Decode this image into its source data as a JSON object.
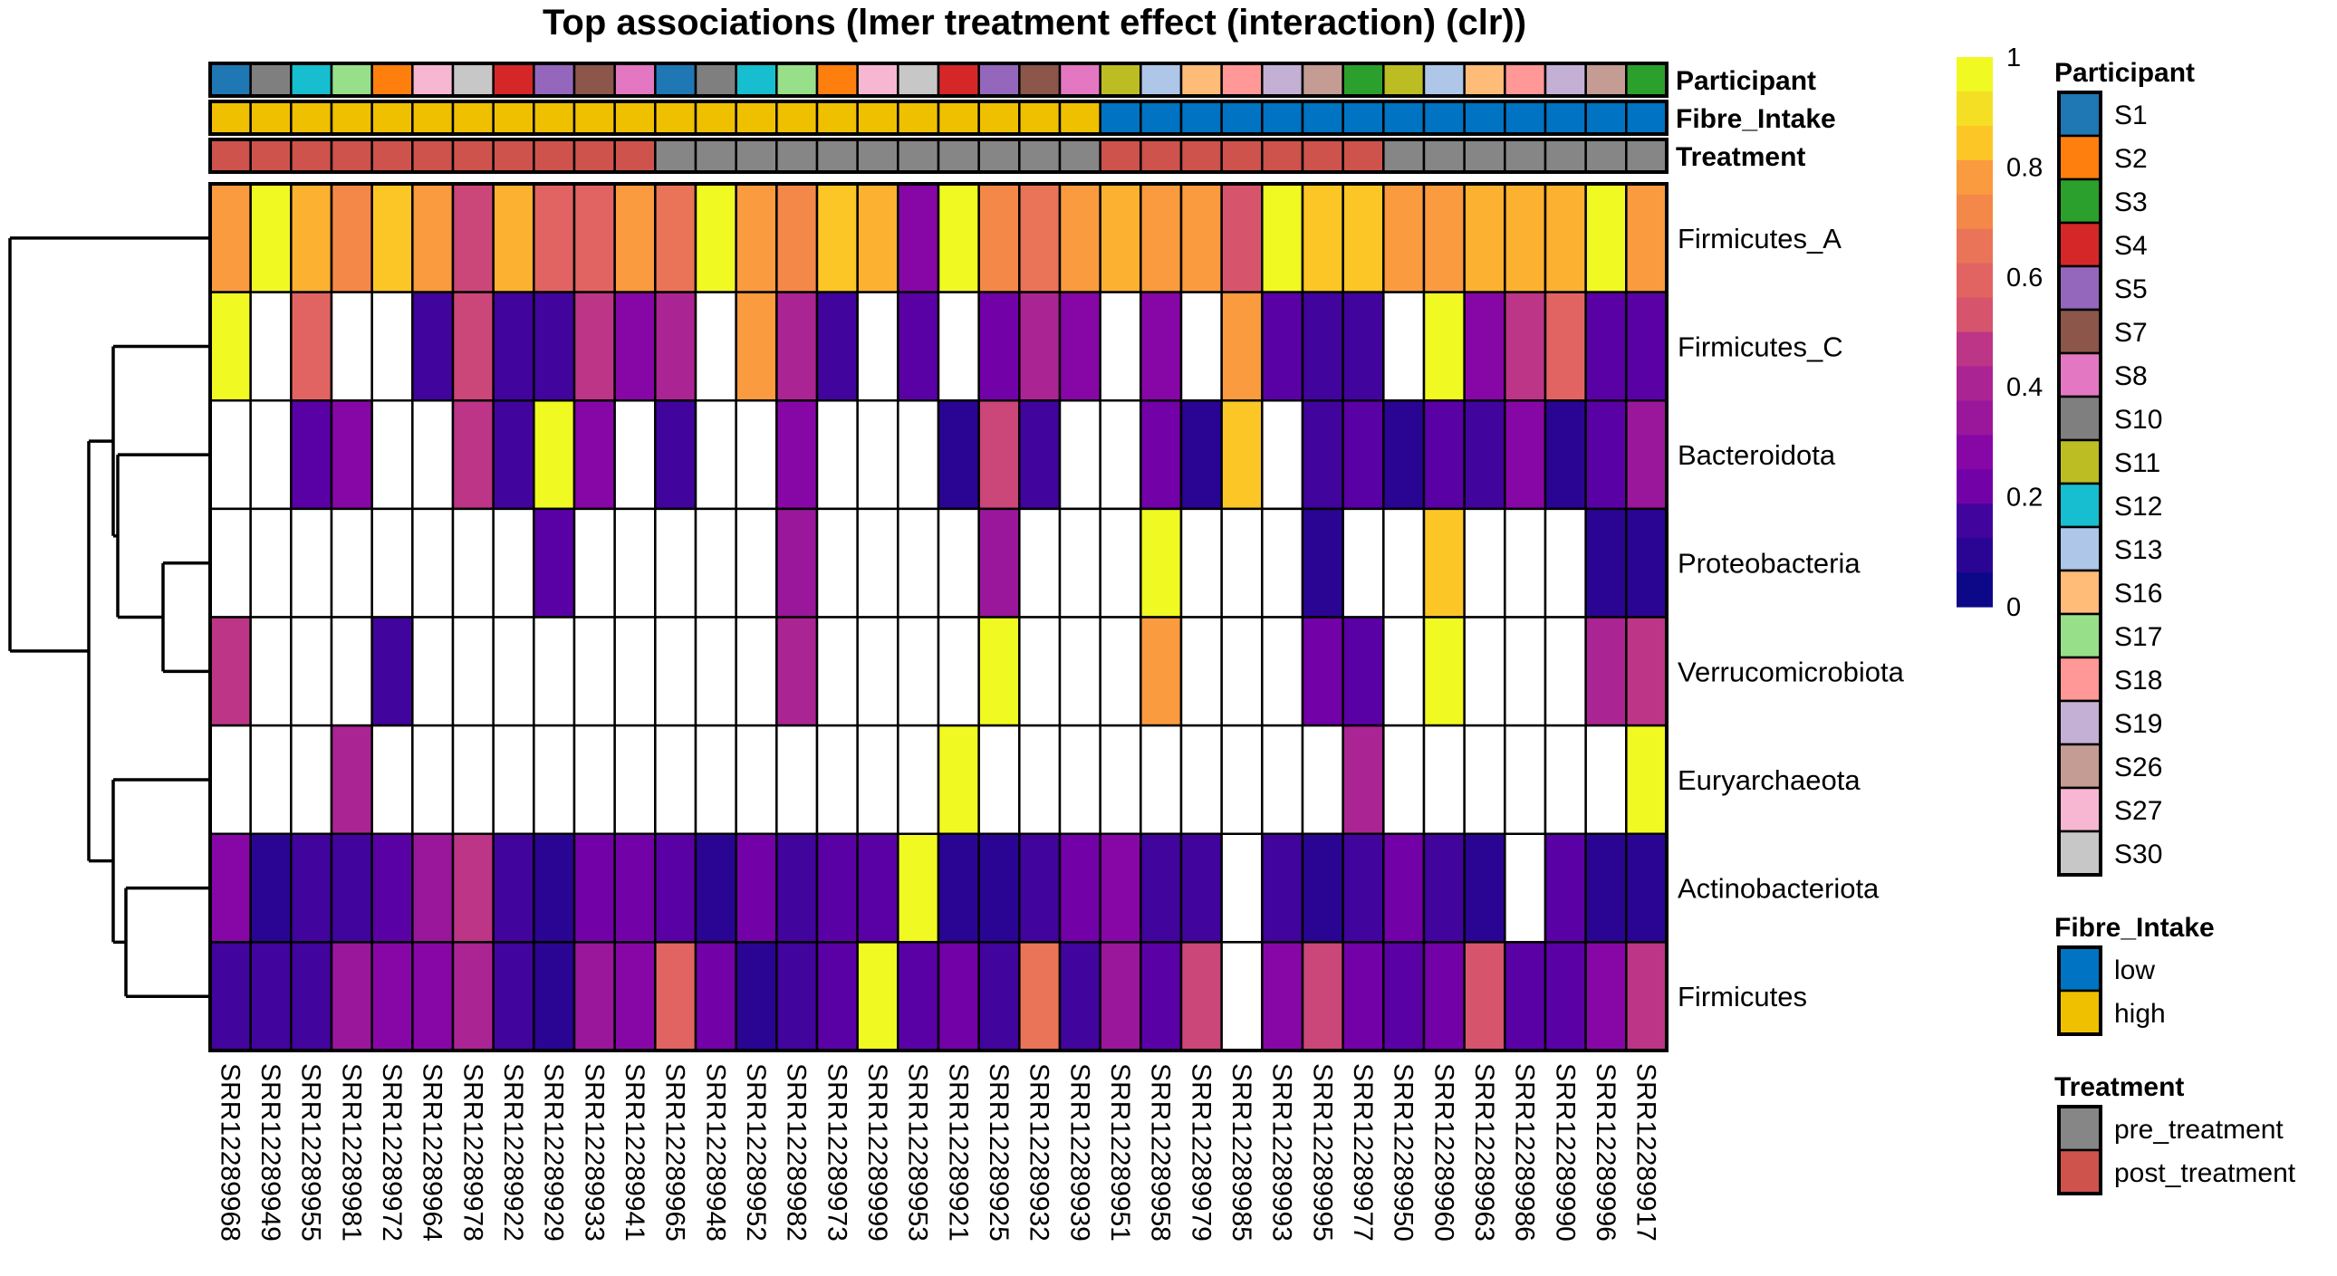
{
  "chart_data": {
    "type": "heatmap",
    "title": "Top associations (lmer treatment effect (interaction) (clr))",
    "xlabel": "",
    "ylabel": "",
    "color_scale": {
      "name": "plasma (stepped)",
      "range": [
        0,
        1
      ],
      "ticks": [
        "0",
        "0.2",
        "0.4",
        "0.6",
        "0.8",
        "1"
      ],
      "tick_values": [
        0,
        0.2,
        0.4,
        0.6,
        0.8,
        1
      ],
      "na_color": "#ffffff"
    },
    "columns": [
      "SRR12289968",
      "SRR12289949",
      "SRR12289955",
      "SRR12289981",
      "SRR12289972",
      "SRR12289964",
      "SRR12289978",
      "SRR12289922",
      "SRR12289929",
      "SRR12289933",
      "SRR12289941",
      "SRR12289965",
      "SRR12289948",
      "SRR12289952",
      "SRR12289982",
      "SRR12289973",
      "SRR12289999",
      "SRR12289953",
      "SRR12289921",
      "SRR12289925",
      "SRR12289932",
      "SRR12289939",
      "SRR12289951",
      "SRR12289958",
      "SRR12289979",
      "SRR12289985",
      "SRR12289993",
      "SRR12289995",
      "SRR12289977",
      "SRR12289950",
      "SRR12289960",
      "SRR12289963",
      "SRR12289986",
      "SRR12289990",
      "SRR12289996",
      "SRR12289917"
    ],
    "rows": [
      "Firmicutes_A",
      "Firmicutes_C",
      "Bacteroidota",
      "Proteobacteria",
      "Verrucomicrobiota",
      "Euryarchaeota",
      "Actinobacteriota",
      "Firmicutes"
    ],
    "values": [
      [
        0.75,
        1,
        0.85,
        0.7,
        0.9,
        0.8,
        0.5,
        0.85,
        0.6,
        0.6,
        0.8,
        0.65,
        1,
        0.75,
        0.7,
        0.9,
        0.85,
        0.3,
        1,
        0.7,
        0.65,
        0.8,
        0.85,
        0.8,
        0.75,
        0.55,
        1,
        0.9,
        0.9,
        0.8,
        0.8,
        0.85,
        0.85,
        0.85,
        1,
        0.75
      ],
      [
        1,
        null,
        0.6,
        null,
        null,
        0.1,
        0.5,
        0.1,
        0.1,
        0.44,
        0.25,
        0.38,
        null,
        0.75,
        0.38,
        0.1,
        null,
        0.15,
        null,
        0.2,
        0.38,
        0.25,
        null,
        0.25,
        null,
        0.75,
        0.15,
        0.1,
        0.1,
        null,
        1,
        0.25,
        0.44,
        0.6,
        0.15,
        0.15
      ],
      [
        null,
        null,
        0.15,
        0.3,
        null,
        null,
        0.44,
        0.1,
        1,
        0.25,
        null,
        0.1,
        null,
        null,
        0.25,
        null,
        null,
        null,
        0.03,
        0.5,
        0.1,
        null,
        null,
        0.2,
        0.03,
        0.9,
        null,
        0.1,
        0.15,
        0.03,
        0.15,
        0.1,
        0.25,
        0.03,
        0.15,
        0.34
      ],
      [
        null,
        null,
        null,
        null,
        null,
        null,
        null,
        null,
        0.15,
        null,
        null,
        null,
        null,
        null,
        0.34,
        null,
        null,
        null,
        null,
        0.34,
        null,
        null,
        null,
        1,
        null,
        null,
        null,
        0.03,
        null,
        null,
        0.9,
        null,
        null,
        null,
        0.03,
        0.03
      ],
      [
        0.44,
        null,
        null,
        null,
        0.1,
        null,
        null,
        null,
        null,
        null,
        null,
        null,
        null,
        null,
        0.38,
        null,
        null,
        null,
        null,
        1,
        null,
        null,
        null,
        0.8,
        null,
        null,
        null,
        0.2,
        0.15,
        null,
        1,
        null,
        null,
        null,
        0.38,
        0.44
      ],
      [
        null,
        null,
        null,
        0.38,
        null,
        null,
        null,
        null,
        null,
        null,
        null,
        null,
        null,
        null,
        null,
        null,
        null,
        null,
        1,
        null,
        null,
        null,
        null,
        null,
        null,
        null,
        null,
        null,
        0.38,
        null,
        null,
        null,
        null,
        null,
        null,
        1
      ],
      [
        0.3,
        0.03,
        0.1,
        0.1,
        0.15,
        0.34,
        0.44,
        0.1,
        0.03,
        0.2,
        0.2,
        0.15,
        0.03,
        0.2,
        0.1,
        0.15,
        0.15,
        1,
        0.03,
        0.03,
        0.1,
        0.2,
        0.25,
        0.1,
        0.1,
        null,
        0.1,
        0.03,
        0.1,
        0.2,
        0.1,
        0.03,
        null,
        0.15,
        0.03,
        0.03
      ],
      [
        0.1,
        0.1,
        0.1,
        0.34,
        0.3,
        0.3,
        0.38,
        0.1,
        0.03,
        0.34,
        0.25,
        0.6,
        0.2,
        0.03,
        0.1,
        0.15,
        1,
        0.15,
        0.2,
        0.1,
        0.65,
        0.1,
        0.34,
        0.15,
        0.5,
        null,
        0.3,
        0.5,
        0.2,
        0.15,
        0.2,
        0.55,
        0.15,
        0.15,
        0.25,
        0.44
      ]
    ],
    "annotations": {
      "labels": [
        "Participant",
        "Fibre_Intake",
        "Treatment"
      ],
      "Participant": [
        "S1",
        "S10",
        "S12",
        "S17",
        "S2",
        "S27",
        "S30",
        "S4",
        "S5",
        "S7",
        "S8",
        "S1",
        "S10",
        "S12",
        "S17",
        "S2",
        "S27",
        "S30",
        "S4",
        "S5",
        "S7",
        "S8",
        "S11",
        "S13",
        "S16",
        "S18",
        "S19",
        "S26",
        "S3",
        "S11",
        "S13",
        "S16",
        "S18",
        "S19",
        "S26",
        "S3"
      ],
      "Fibre_Intake": [
        "high",
        "high",
        "high",
        "high",
        "high",
        "high",
        "high",
        "high",
        "high",
        "high",
        "high",
        "high",
        "high",
        "high",
        "high",
        "high",
        "high",
        "high",
        "high",
        "high",
        "high",
        "high",
        "low",
        "low",
        "low",
        "low",
        "low",
        "low",
        "low",
        "low",
        "low",
        "low",
        "low",
        "low",
        "low",
        "low"
      ],
      "Treatment": [
        "post_treatment",
        "post_treatment",
        "post_treatment",
        "post_treatment",
        "post_treatment",
        "post_treatment",
        "post_treatment",
        "post_treatment",
        "post_treatment",
        "post_treatment",
        "post_treatment",
        "pre_treatment",
        "pre_treatment",
        "pre_treatment",
        "pre_treatment",
        "pre_treatment",
        "pre_treatment",
        "pre_treatment",
        "pre_treatment",
        "pre_treatment",
        "pre_treatment",
        "pre_treatment",
        "post_treatment",
        "post_treatment",
        "post_treatment",
        "post_treatment",
        "post_treatment",
        "post_treatment",
        "post_treatment",
        "pre_treatment",
        "pre_treatment",
        "pre_treatment",
        "pre_treatment",
        "pre_treatment",
        "pre_treatment",
        "pre_treatment"
      ]
    },
    "row_dendrogram": {
      "merges": [
        [
          "Proteobacteria",
          "Verrucomicrobiota"
        ],
        [
          "Bacteroidota",
          "(Proteobacteria,Verrucomicrobiota)"
        ],
        [
          "Firmicutes_C",
          "(Bacteroidota,(Proteobacteria,Verrucomicrobiota))"
        ],
        [
          "Actinobacteriota",
          "Firmicutes"
        ],
        [
          "Euryarchaeota",
          "(Actinobacteriota,Firmicutes)"
        ],
        [
          "(Firmicutes_C,...)",
          "(Euryarchaeota,...)"
        ],
        [
          "Firmicutes_A",
          "(rest)"
        ]
      ]
    },
    "legends": [
      {
        "title": "Participant",
        "entries": [
          {
            "label": "S1",
            "color": "#1f77b4"
          },
          {
            "label": "S2",
            "color": "#ff7f0e"
          },
          {
            "label": "S3",
            "color": "#2ca02c"
          },
          {
            "label": "S4",
            "color": "#d62728"
          },
          {
            "label": "S5",
            "color": "#9467bd"
          },
          {
            "label": "S7",
            "color": "#8c564b"
          },
          {
            "label": "S8",
            "color": "#e377c2"
          },
          {
            "label": "S10",
            "color": "#7f7f7f"
          },
          {
            "label": "S11",
            "color": "#bcbd22"
          },
          {
            "label": "S12",
            "color": "#17becf"
          },
          {
            "label": "S13",
            "color": "#aec7e8"
          },
          {
            "label": "S16",
            "color": "#ffbb78"
          },
          {
            "label": "S17",
            "color": "#98df8a"
          },
          {
            "label": "S18",
            "color": "#ff9896"
          },
          {
            "label": "S19",
            "color": "#c5b0d5"
          },
          {
            "label": "S26",
            "color": "#c49c94"
          },
          {
            "label": "S27",
            "color": "#f7b6d2"
          },
          {
            "label": "S30",
            "color": "#c7c7c7"
          }
        ]
      },
      {
        "title": "Fibre_Intake",
        "entries": [
          {
            "label": "low",
            "color": "#0073c2"
          },
          {
            "label": "high",
            "color": "#efc000"
          }
        ]
      },
      {
        "title": "Treatment",
        "entries": [
          {
            "label": "pre_treatment",
            "color": "#868686"
          },
          {
            "label": "post_treatment",
            "color": "#cd534c"
          }
        ]
      }
    ],
    "grid": false,
    "legend_position": "right"
  }
}
